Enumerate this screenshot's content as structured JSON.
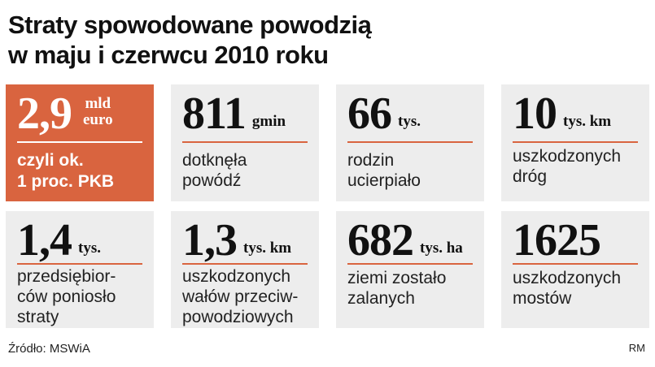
{
  "title": {
    "line1": "Straty spowodowane powodzią",
    "line2": "w maju i czerwcu 2010 roku"
  },
  "cards": [
    {
      "value": "2,9",
      "unit_line1": "mld",
      "unit_line2": "euro",
      "desc_line1": "czyli ok.",
      "desc_line2": "1 proc. PKB",
      "accent": "#d9643f"
    },
    {
      "value": "811",
      "unit": "gmin",
      "desc_line1": "dotknęła",
      "desc_line2": "powódź"
    },
    {
      "value": "66",
      "unit": "tys.",
      "desc_line1": "rodzin",
      "desc_line2": "ucierpiało"
    },
    {
      "value": "10",
      "unit": "tys. km",
      "desc_line1": "uszkodzonych",
      "desc_line2": "dróg"
    },
    {
      "value": "1,4",
      "unit": "tys.",
      "desc_line1": "przedsiębior-",
      "desc_line2": "ców poniosło",
      "desc_line3": "straty"
    },
    {
      "value": "1,3",
      "unit": "tys. km",
      "desc_line1": "uszkodzonych",
      "desc_line2": "wałów przeciw-",
      "desc_line3": "powodziowych"
    },
    {
      "value": "682",
      "unit": "tys. ha",
      "desc_line1": "ziemi zostało",
      "desc_line2": "zalanych"
    },
    {
      "value": "1625",
      "unit": "",
      "desc_line1": "uszkodzonych",
      "desc_line2": "mostów"
    }
  ],
  "footer": {
    "source": "Źródło: MSWiA",
    "author": "RM"
  }
}
